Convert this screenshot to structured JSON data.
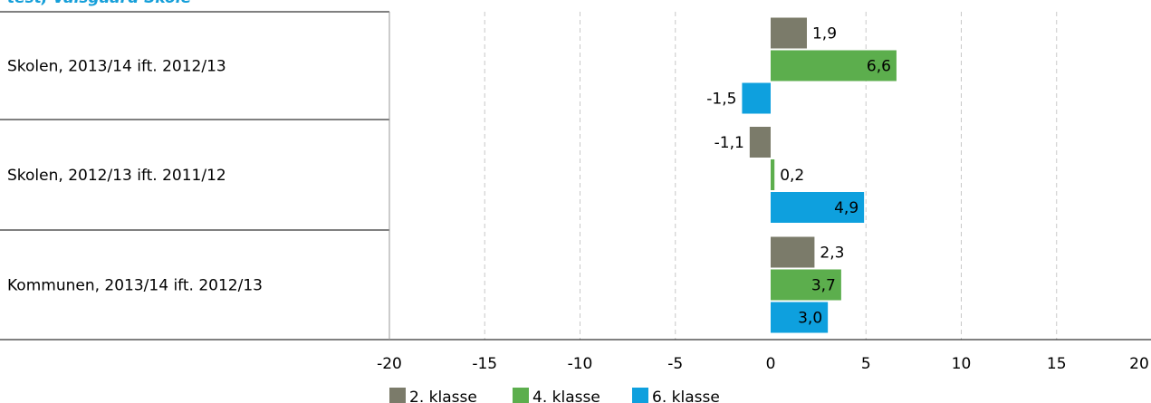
{
  "header": {
    "title": "test, Valsgaard Skole"
  },
  "chart_data": {
    "type": "bar",
    "orientation": "horizontal",
    "categories": [
      "Skolen, 2013/14 ift. 2012/13",
      "Skolen, 2012/13 ift. 2011/12",
      "Kommunen, 2013/14 ift. 2012/13"
    ],
    "series": [
      {
        "name": "2. klasse",
        "color": "#7b7b6a",
        "values": [
          1.9,
          -1.1,
          2.3
        ],
        "labels": [
          "1,9",
          "-1,1",
          "2,3"
        ]
      },
      {
        "name": "4. klasse",
        "color": "#5cae4d",
        "values": [
          6.6,
          0.2,
          3.7
        ],
        "labels": [
          "6,6",
          "0,2",
          "3,7"
        ]
      },
      {
        "name": "6. klasse",
        "color": "#0ea0de",
        "values": [
          -1.5,
          4.9,
          3.0
        ],
        "labels": [
          "-1,5",
          "4,9",
          "3,0"
        ]
      }
    ],
    "xlim": [
      -20,
      20
    ],
    "ticks": [
      -20,
      -15,
      -10,
      -5,
      0,
      5,
      10,
      15,
      20
    ],
    "grid": "vertical dashed",
    "legend": "bottom"
  }
}
